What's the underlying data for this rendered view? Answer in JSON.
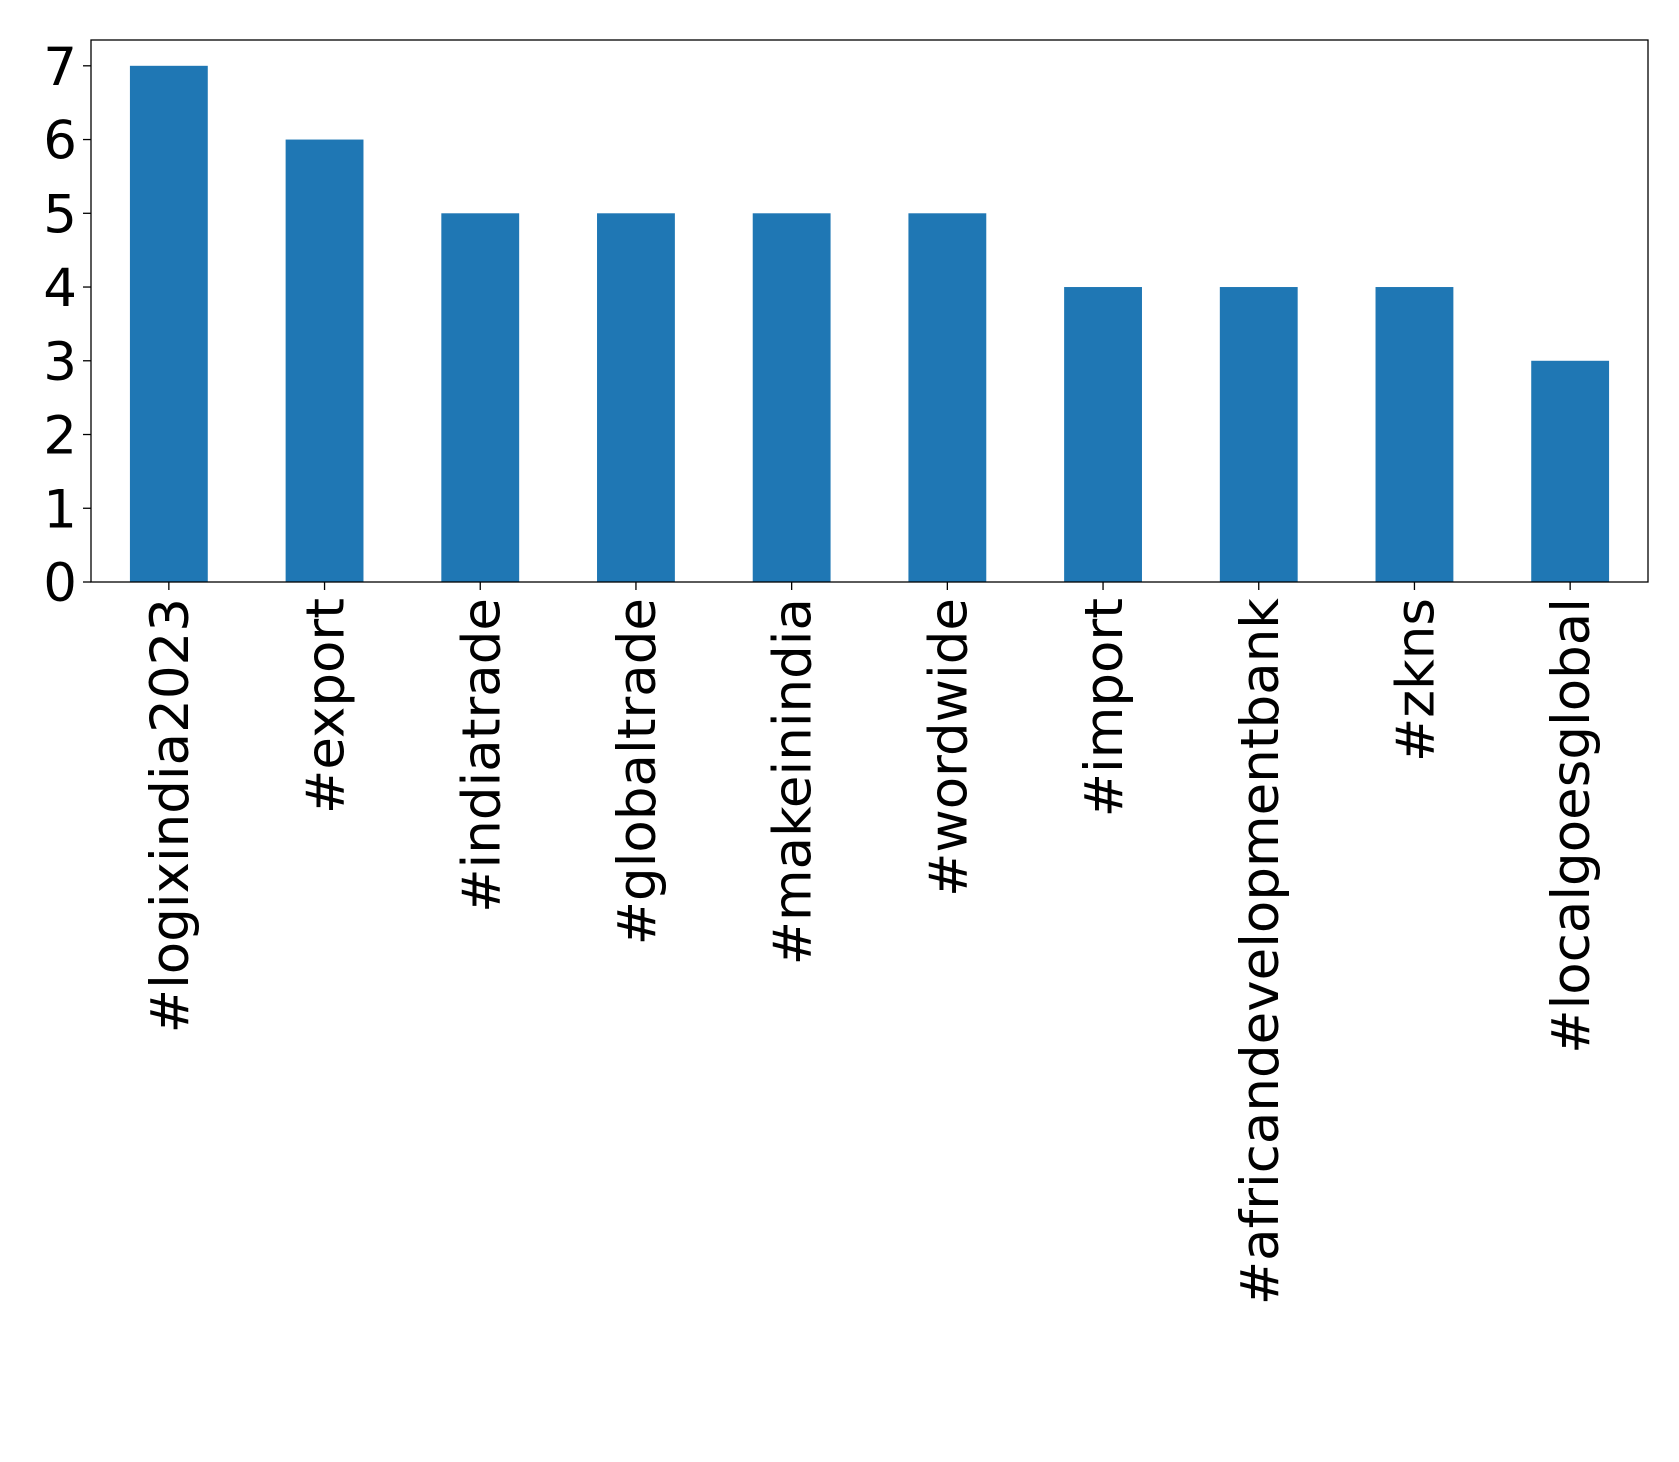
{
  "chart_data": {
    "type": "bar",
    "categories": [
      "#logixindia2023",
      "#export",
      "#indiatrade",
      "#globaltrade",
      "#makeinindia",
      "#wordwide",
      "#import",
      "#africandevelopmentbank",
      "#zkns",
      "#localgoesglobal"
    ],
    "values": [
      7,
      6,
      5,
      5,
      5,
      5,
      4,
      4,
      4,
      3
    ],
    "color": "#1f77b4",
    "ylim": [
      0,
      7.35
    ],
    "yticks": [
      0,
      1,
      2,
      3,
      4,
      5,
      6,
      7
    ],
    "grid": false
  }
}
